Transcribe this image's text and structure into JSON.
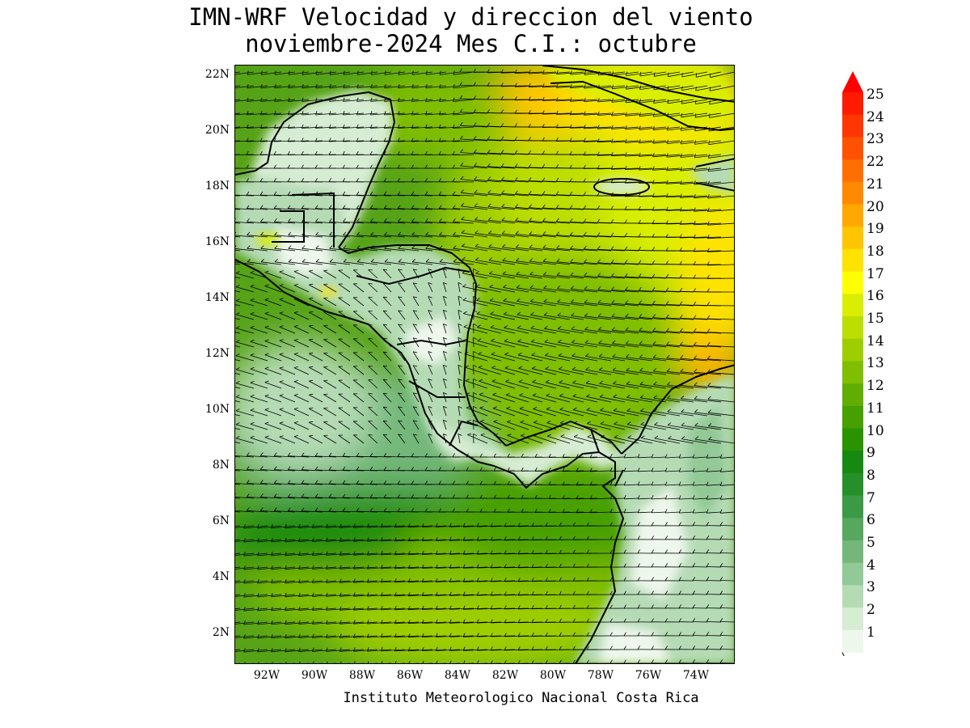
{
  "title_line1": "IMN-WRF Velocidad y direccion del viento",
  "title_line2": "noviembre-2024 Mes C.I.: octubre",
  "credit": "Instituto Meteorologico Nacional Costa Rica",
  "y_ticks": [
    "22N",
    "20N",
    "18N",
    "16N",
    "14N",
    "12N",
    "10N",
    "8N",
    "6N",
    "4N",
    "2N"
  ],
  "x_ticks": [
    "92W",
    "90W",
    "88W",
    "86W",
    "84W",
    "82W",
    "80W",
    "78W",
    "76W",
    "74W"
  ],
  "colorbar": {
    "labels": [
      "25",
      "24",
      "23",
      "22",
      "21",
      "20",
      "19",
      "18",
      "17",
      "16",
      "15",
      "14",
      "13",
      "12",
      "11",
      "10",
      "9",
      "8",
      "7",
      "6",
      "5",
      "4",
      "3",
      "2",
      "1"
    ],
    "colors": [
      "#ff1a00",
      "#ff3600",
      "#ff5200",
      "#ff6e00",
      "#ff8a00",
      "#ffa800",
      "#ffc600",
      "#ffe300",
      "#ffff00",
      "#d9ee00",
      "#bcde00",
      "#9fce00",
      "#7fbe00",
      "#62ae00",
      "#46a000",
      "#2a9300",
      "#168a10",
      "#25902a",
      "#3b9b45",
      "#55a85e",
      "#73b87a",
      "#93c996",
      "#b5dbb5",
      "#d6ecd3",
      "#eef7ec"
    ],
    "over_color": "#ff0000"
  },
  "chart_data": {
    "type": "heatmap",
    "quantity": "wind speed and direction",
    "xlim_degW": [
      93.0,
      71.7
    ],
    "ylim_degN": [
      1.0,
      22.5
    ],
    "scale_min": 1,
    "scale_max": 25
  }
}
